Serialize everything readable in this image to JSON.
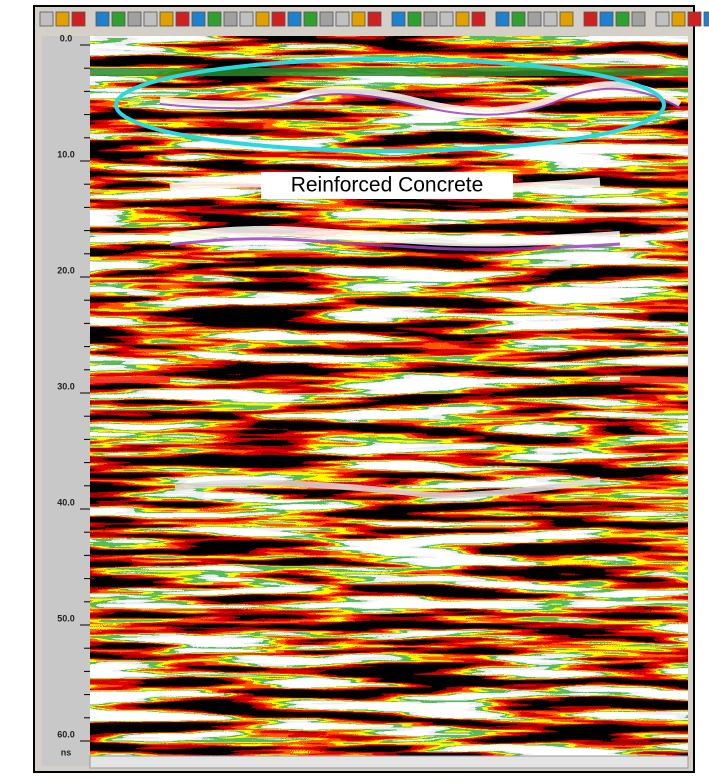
{
  "depth_axis": {
    "labels": [
      "0.0",
      "10.0",
      "20.0",
      "30.0",
      "40.0",
      "50.0",
      "60.0"
    ],
    "unit": "ns"
  },
  "annotation": "Reinforced Concrete"
}
